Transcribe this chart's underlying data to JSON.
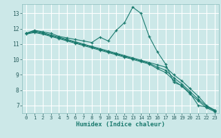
{
  "title": "",
  "xlabel": "Humidex (Indice chaleur)",
  "ylabel": "",
  "bg_color": "#cce8e8",
  "grid_color": "#ffffff",
  "line_color": "#1a7a6e",
  "xlim": [
    -0.5,
    23.5
  ],
  "ylim": [
    6.5,
    13.6
  ],
  "xticks": [
    0,
    1,
    2,
    3,
    4,
    5,
    6,
    7,
    8,
    9,
    10,
    11,
    12,
    13,
    14,
    15,
    16,
    17,
    18,
    19,
    20,
    21,
    22,
    23
  ],
  "yticks": [
    7,
    8,
    9,
    10,
    11,
    12,
    13
  ],
  "series1_x": [
    0,
    1,
    2,
    3,
    4,
    5,
    6,
    7,
    8,
    9,
    10,
    11,
    12,
    13,
    14,
    15,
    16,
    17,
    18,
    19,
    20,
    21,
    22,
    23
  ],
  "series1_y": [
    11.7,
    11.9,
    11.8,
    11.7,
    11.5,
    11.4,
    11.3,
    11.2,
    11.1,
    11.45,
    11.2,
    11.9,
    12.4,
    13.4,
    13.0,
    11.5,
    10.5,
    9.7,
    8.5,
    8.3,
    7.8,
    7.0,
    6.9,
    6.7
  ],
  "series2_x": [
    0,
    1,
    2,
    3,
    4,
    5,
    6,
    7,
    8,
    9,
    10,
    11,
    12,
    13,
    14,
    15,
    16,
    17,
    18,
    19,
    20,
    21,
    22,
    23
  ],
  "series2_y": [
    11.7,
    11.85,
    11.75,
    11.6,
    11.45,
    11.3,
    11.15,
    11.0,
    10.85,
    10.7,
    10.55,
    10.4,
    10.25,
    10.1,
    9.95,
    9.8,
    9.65,
    9.5,
    9.0,
    8.6,
    8.1,
    7.6,
    7.0,
    6.7
  ],
  "series3_x": [
    0,
    1,
    2,
    3,
    4,
    5,
    6,
    7,
    8,
    9,
    10,
    11,
    12,
    13,
    14,
    15,
    16,
    17,
    18,
    19,
    20,
    21,
    22,
    23
  ],
  "series3_y": [
    11.7,
    11.8,
    11.7,
    11.55,
    11.4,
    11.25,
    11.1,
    10.95,
    10.8,
    10.65,
    10.5,
    10.35,
    10.2,
    10.05,
    9.9,
    9.75,
    9.5,
    9.3,
    8.8,
    8.4,
    7.9,
    7.4,
    6.95,
    6.65
  ],
  "series4_x": [
    0,
    1,
    2,
    3,
    4,
    5,
    6,
    7,
    8,
    9,
    10,
    11,
    12,
    13,
    14,
    15,
    16,
    17,
    18,
    19,
    20,
    21,
    22,
    23
  ],
  "series4_y": [
    11.65,
    11.75,
    11.65,
    11.5,
    11.35,
    11.2,
    11.05,
    10.9,
    10.75,
    10.6,
    10.45,
    10.3,
    10.15,
    10.0,
    9.85,
    9.7,
    9.4,
    9.15,
    8.65,
    8.25,
    7.75,
    7.3,
    6.85,
    6.6
  ]
}
